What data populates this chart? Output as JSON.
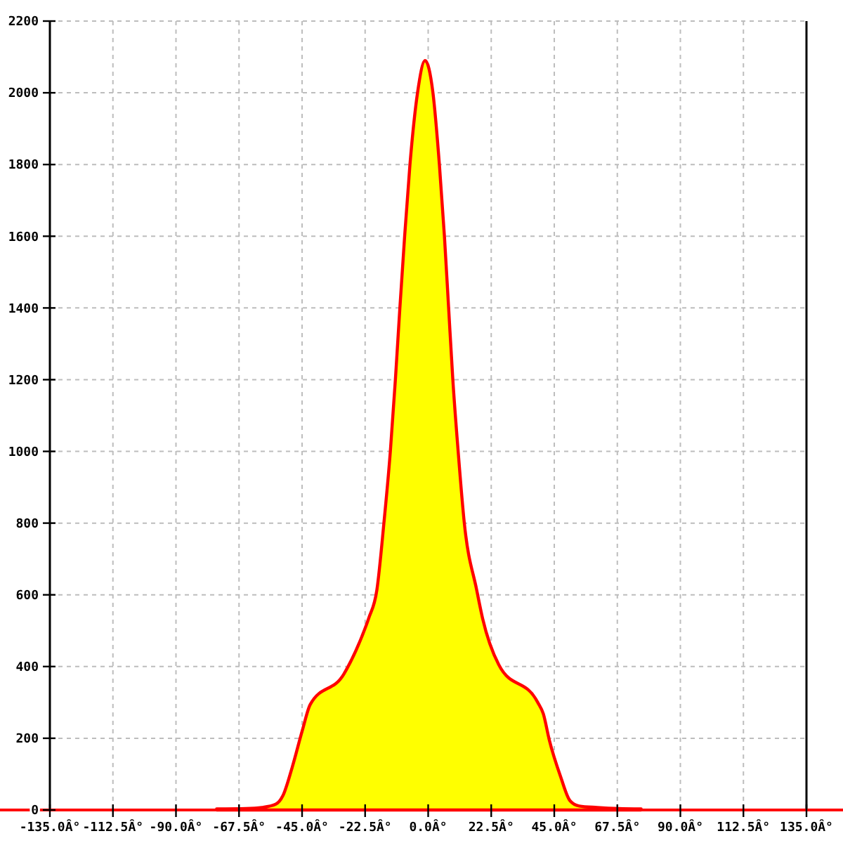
{
  "chart_data": {
    "type": "area",
    "x": [
      -75.5,
      -65,
      -59.3,
      -54.4,
      -51.9,
      -48.6,
      -44.9,
      -42.1,
      -30.1,
      -23.7,
      -21.2,
      -18.3,
      -15.8,
      -13.5,
      -11.7,
      -10.1,
      -8.4,
      -6.5,
      -3.8,
      -1.1,
      1.7,
      4.0,
      5.8,
      7.3,
      8.8,
      10.7,
      12.9,
      17.3,
      19.4,
      25.2,
      39.1,
      41.1,
      43.2,
      47.3,
      50.6,
      53.9,
      60.3,
      68,
      76
    ],
    "series": [
      {
        "type": "area",
        "color": "#ffff00",
        "values": [
          3,
          4,
          7,
          16,
          39,
          117,
          222,
          294,
          379,
          483,
          535,
          614,
          800,
          1000,
          1200,
          1400,
          1600,
          1800,
          2000,
          2090,
          2000,
          1800,
          1600,
          1400,
          1200,
          1000,
          800,
          614,
          535,
          405,
          300,
          268,
          196,
          92,
          26,
          11,
          7,
          4,
          3
        ]
      }
    ],
    "xlim": [
      -135,
      135
    ],
    "xticks": [
      {
        "value": -135,
        "label": "-135.0Â°"
      },
      {
        "value": -112.5,
        "label": "-112.5Â°"
      },
      {
        "value": -90,
        "label": "-90.0Â°"
      },
      {
        "value": -67.5,
        "label": "-67.5Â°"
      },
      {
        "value": -45,
        "label": "-45.0Â°"
      },
      {
        "value": -22.5,
        "label": "-22.5Â°"
      },
      {
        "value": 0,
        "label": "0.0Â°"
      },
      {
        "value": 22.5,
        "label": "22.5Â°"
      },
      {
        "value": 45,
        "label": "45.0Â°"
      },
      {
        "value": 67.5,
        "label": "67.5Â°"
      },
      {
        "value": 90,
        "label": "90.0Â°"
      },
      {
        "value": 112.5,
        "label": "112.5Â°"
      },
      {
        "value": 135,
        "label": "135.0Â°"
      }
    ],
    "ylim": [
      0,
      2200
    ],
    "yticks": [
      0,
      200,
      400,
      600,
      800,
      1000,
      1200,
      1400,
      1600,
      1800,
      2000,
      2200
    ],
    "grid": true
  }
}
